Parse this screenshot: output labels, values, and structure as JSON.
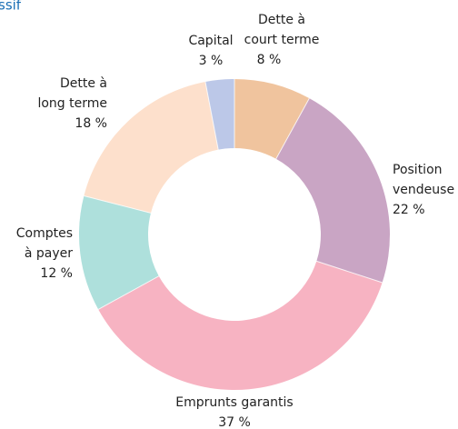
{
  "chart_data": {
    "type": "donut",
    "title": "ssif",
    "categories": [
      [
        "Dette à",
        "court terme"
      ],
      [
        "Position",
        "vendeuse"
      ],
      [
        "Emprunts garantis"
      ],
      [
        "Comptes",
        "à payer"
      ],
      [
        "Dette à",
        "long terme"
      ],
      [
        "Capital"
      ]
    ],
    "values": [
      8,
      22,
      37,
      12,
      18,
      3
    ],
    "value_labels": [
      "8 %",
      "22 %",
      "37 %",
      "12 %",
      "18 %",
      "3 %"
    ],
    "colors": [
      "#f0c49e",
      "#c9a5c4",
      "#f7b3c2",
      "#aee0dc",
      "#fde0cc",
      "#bcc8e8"
    ]
  }
}
